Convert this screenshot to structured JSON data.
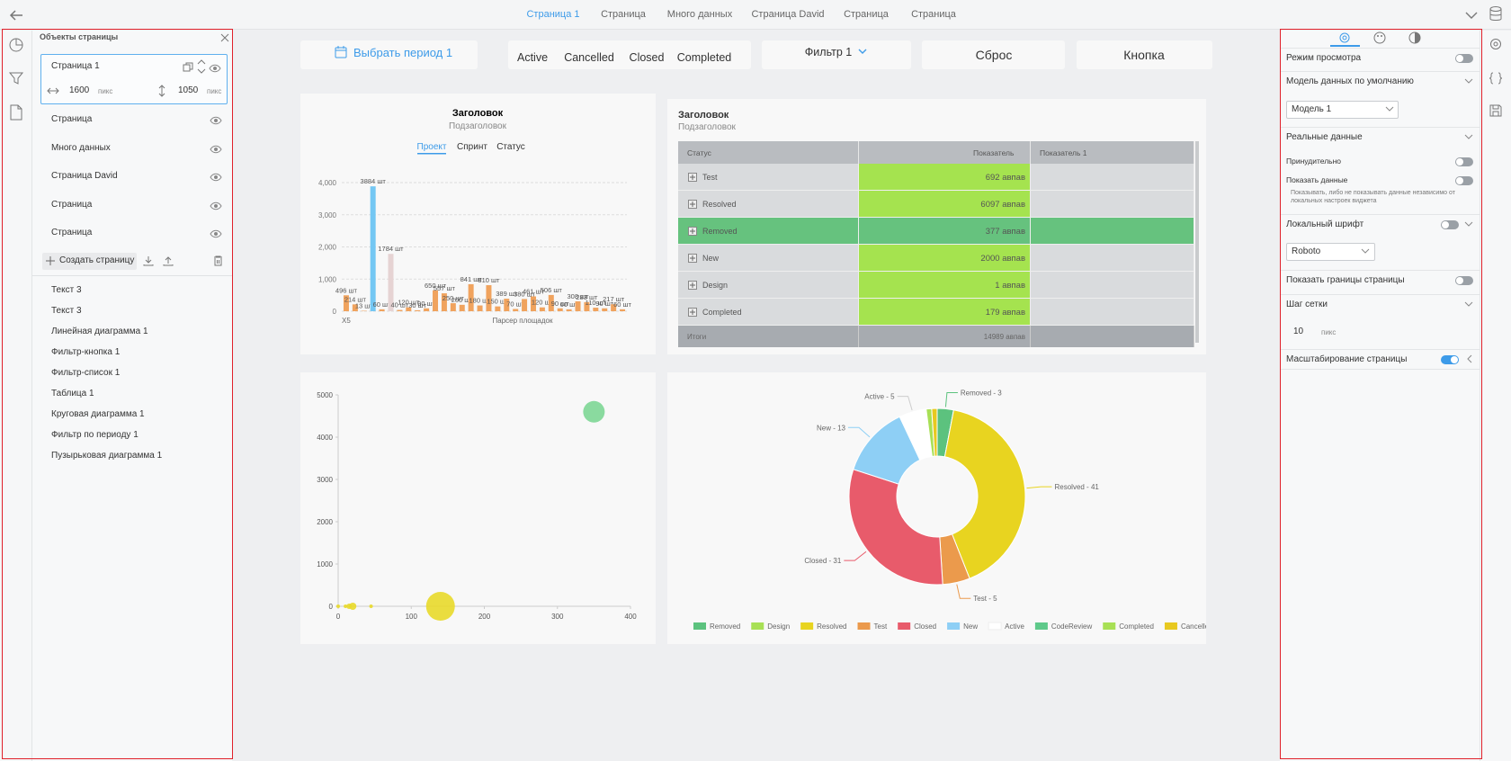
{
  "top_tabs": [
    "Страница 1",
    "Страница",
    "Много данных",
    "Страница David",
    "Страница",
    "Страница"
  ],
  "left_panel": {
    "title": "Объекты страницы",
    "current_page": {
      "name": "Страница 1",
      "width": "1600",
      "height": "1050",
      "unit": "пикс"
    },
    "pages": [
      "Страница",
      "Много данных",
      "Страница David",
      "Страница",
      "Страница"
    ],
    "create_button": "Создать страницу",
    "objects": [
      "Текст 3",
      "Текст 3",
      "Линейная диаграмма 1",
      "Фильтр-кнопка 1",
      "Фильтр-список 1",
      "Таблица 1",
      "Круговая диаграмма 1",
      "Фильтр по периоду 1",
      "Пузырьковая диаграмма 1"
    ]
  },
  "filters": {
    "period": "Выбрать период 1",
    "statuses": [
      "Active",
      "Cancelled",
      "Closed",
      "Completed"
    ],
    "filter": "Фильтр 1",
    "reset": "Сброс",
    "button": "Кнопка"
  },
  "bar_chart": {
    "type": "bar",
    "title": "Заголовок",
    "subtitle": "Подзаголовок",
    "tabs": [
      "Проект",
      "Спринт",
      "Статус"
    ],
    "x_label": "Парсер площадок",
    "categories": [
      "X5",
      null,
      null,
      null,
      null,
      null,
      null,
      null,
      null,
      null,
      null,
      null,
      null,
      null,
      null,
      null,
      null,
      null,
      null,
      null,
      null,
      null,
      null,
      null,
      null,
      null,
      null,
      null,
      null,
      null,
      null,
      null
    ],
    "values": [
      496,
      214,
      13,
      3884,
      60,
      1784,
      40,
      120,
      30,
      90,
      650,
      557,
      250,
      200,
      841,
      180,
      810,
      150,
      389,
      70,
      380,
      461,
      120,
      506,
      90,
      60,
      308,
      283,
      110,
      90,
      217,
      60
    ],
    "value_labels": [
      "496 шт",
      "214 шт",
      "13 шт",
      "3884 шт",
      "60 шт",
      "1784 шт",
      "40 шт",
      "120 шт",
      "30 шт",
      "90 шт",
      "650 шт",
      "557 шт",
      "250 шт",
      "200 шт",
      "841 шт",
      "180 шт",
      "810 шт",
      "150 шт",
      "389 шт",
      "70 шт",
      "380 шт",
      "461 шт",
      "120 шт",
      "506 шт",
      "90 шт",
      "60 шт",
      "308 шт",
      "283 шт",
      "110 шт",
      "90 шт",
      "217 шт",
      "60 шт"
    ],
    "colors": [
      "#f0a35e",
      "#f0a35e",
      "#f0a35e",
      "#74c7f3",
      "#f0a35e",
      "#e6d3d3",
      "#f0a35e",
      "#f0a35e",
      "#f0a35e",
      "#f0a35e",
      "#f0a35e",
      "#f0a35e",
      "#f0a35e",
      "#f0a35e",
      "#f0a35e",
      "#f0a35e",
      "#f0a35e",
      "#f0a35e",
      "#f0a35e",
      "#f0a35e",
      "#f0a35e",
      "#f0a35e",
      "#f0a35e",
      "#f0a35e",
      "#f0a35e",
      "#f0a35e",
      "#f0a35e",
      "#f0a35e",
      "#f0a35e",
      "#f0a35e",
      "#f0a35e",
      "#f0a35e"
    ],
    "ylim": [
      0,
      4000
    ],
    "yticks": [
      0,
      {
        "value": 1000,
        "label": "1,000"
      },
      {
        "value": 2000,
        "label": "2,000"
      },
      {
        "value": 3000,
        "label": "3,000"
      },
      {
        "value": 4000,
        "label": "4,000"
      }
    ],
    "grid": true
  },
  "table": {
    "title": "Заголовок",
    "subtitle": "Подзаголовок",
    "columns": [
      "Статус",
      "Показатель",
      "Показатель 1"
    ],
    "rows": [
      [
        "Test",
        "692 авпав"
      ],
      [
        "Resolved",
        "6097 авпав"
      ],
      [
        "Removed",
        "377 авпав"
      ],
      [
        "New",
        "2000 авпав"
      ],
      [
        "Design",
        "1 авпав"
      ],
      [
        "Completed",
        "179 авпав"
      ]
    ],
    "total": [
      "Итоги",
      "14989 авпав"
    ]
  },
  "bubble_chart": {
    "type": "scatter",
    "x": [
      350,
      140,
      0,
      10,
      15,
      20,
      45
    ],
    "values": [
      4600,
      0,
      0,
      0,
      0,
      0,
      0
    ],
    "sizes": [
      12,
      16,
      2,
      2,
      3,
      4,
      2
    ],
    "colors": [
      "#7dd695",
      "#e8d92a",
      "#e8d92a",
      "#e8d92a",
      "#e8d92a",
      "#e8d92a",
      "#e8d92a"
    ],
    "xlim": [
      0,
      400
    ],
    "xticks": [
      0,
      100,
      200,
      300,
      400
    ],
    "ylim": [
      0,
      5000
    ],
    "yticks": [
      0,
      1000,
      2000,
      3000,
      4000,
      5000
    ]
  },
  "pie_chart": {
    "type": "pie",
    "categories": [
      "Removed",
      "Design",
      "Resolved",
      "Test",
      "Closed",
      "New",
      "Active",
      "CodeReview",
      "Completed",
      "Cancelled"
    ],
    "values": [
      3,
      0,
      41,
      5,
      31,
      13,
      5,
      0,
      1,
      1
    ],
    "value_labels": [
      "Removed - 3",
      null,
      "Resolved - 41",
      "Test - 5",
      "Closed - 31",
      "New - 13",
      "Active - 5",
      null,
      null,
      null
    ],
    "colors": [
      "#5cc27e",
      "#a8e055",
      "#e8d420",
      "#eb9a4c",
      "#e85b6b",
      "#8ecff5",
      "#ffffff",
      "#5ec98a",
      "#a8e055",
      "#e8c920"
    ]
  },
  "settings": {
    "view_mode": "Режим просмотра",
    "default_model": "Модель данных по умолчанию",
    "model": "Модель 1",
    "real_data": "Реальные данные",
    "forced": "Принудительно",
    "show_data": "Показать данные",
    "note": "Показывать, либо не показывать данные независимо от локальных настроек виджета",
    "local_font": "Локальный шрифт",
    "font": "Roboto",
    "show_borders": "Показать границы страницы",
    "grid_step": "Шаг сетки",
    "grid_value": "10",
    "grid_unit": "пикс",
    "scaling": "Масштабирование страницы"
  }
}
